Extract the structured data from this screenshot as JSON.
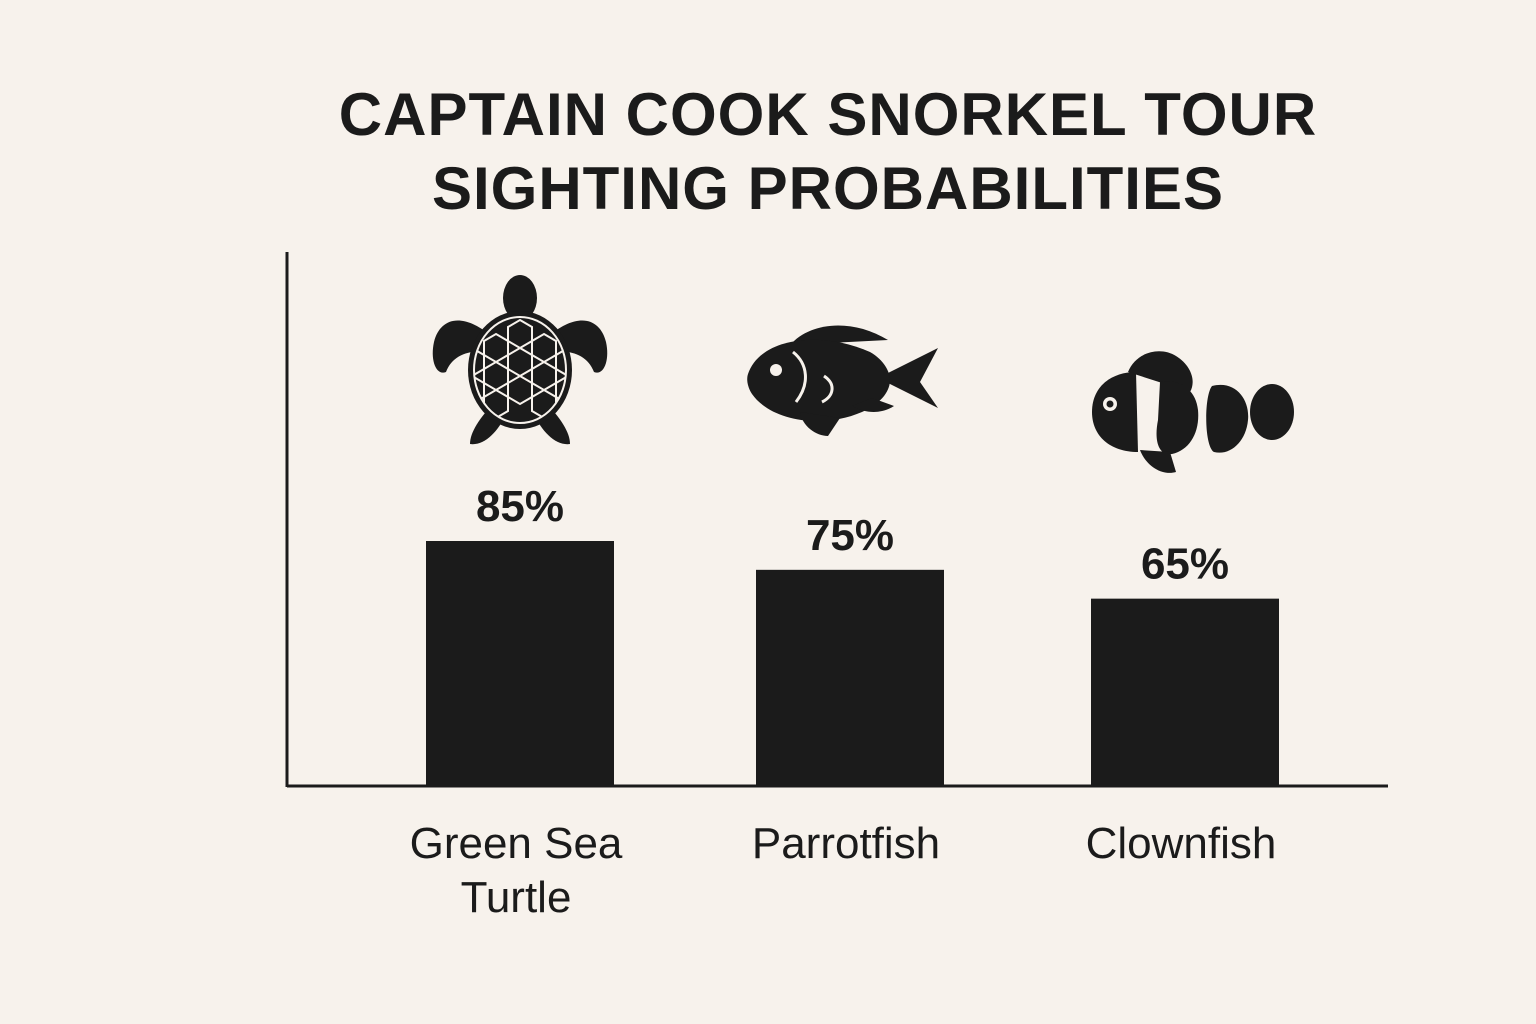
{
  "chart_data": {
    "type": "bar",
    "title_lines": [
      "CAPTAIN COOK SNORKEL TOUR",
      "SIGHTING PROBABILITIES"
    ],
    "categories": [
      "Green Sea Turtle",
      "Parrotfish",
      "Clownfish"
    ],
    "category_label_lines": [
      [
        "Green Sea",
        "Turtle"
      ],
      [
        "Parrotfish"
      ],
      [
        "Clownfish"
      ]
    ],
    "values": [
      85,
      75,
      65
    ],
    "value_labels": [
      "85%",
      "75%",
      "65%"
    ],
    "icons": [
      "sea-turtle-icon",
      "parrotfish-icon",
      "clownfish-icon"
    ],
    "ylim": [
      0,
      100
    ],
    "grid": false,
    "legend": "none",
    "bar_color": "#1b1b1b",
    "background_color": "#f7f2ec"
  }
}
